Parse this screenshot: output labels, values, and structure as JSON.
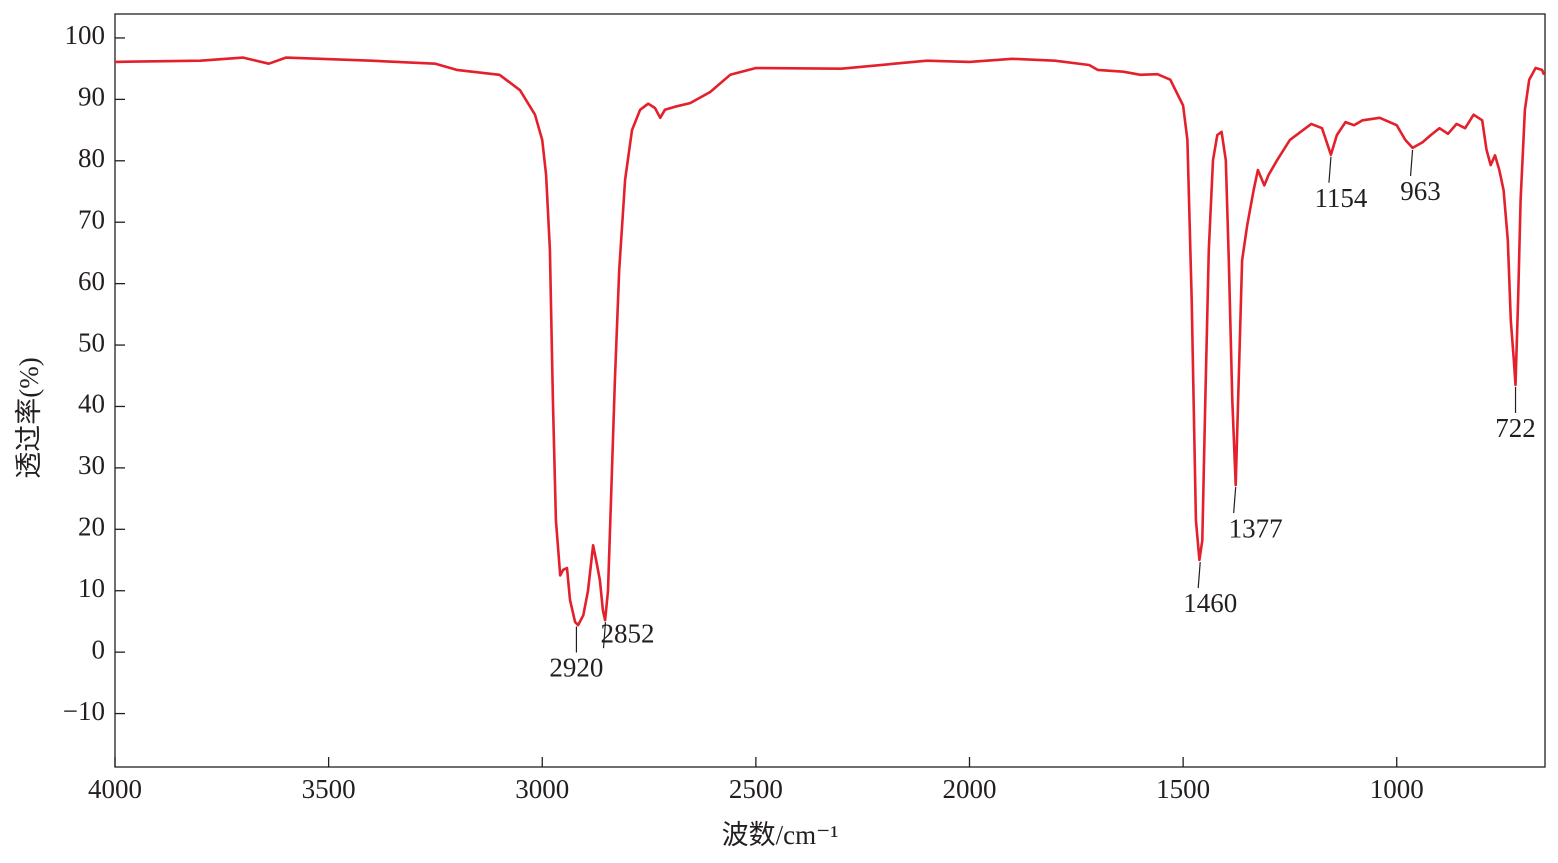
{
  "chart_data": {
    "type": "line",
    "x_label": "波数/cm⁻¹",
    "y_label": "透过率(%)",
    "color": "#e3202b",
    "xlim": [
      4000,
      653
    ],
    "ylim": [
      -18.7,
      103.9
    ],
    "xticks": [
      4000,
      3500,
      3000,
      2500,
      2000,
      1500,
      1000
    ],
    "yticks": [
      {
        "value": -10,
        "label": "−10"
      },
      0,
      10,
      20,
      30,
      40,
      50,
      60,
      70,
      80,
      90,
      100
    ],
    "x": [
      4000,
      3800,
      3700,
      3640,
      3600,
      3400,
      3250,
      3200,
      3100,
      3052,
      3017,
      3000,
      2991,
      2982,
      2975,
      2968,
      2958,
      2951,
      2942,
      2935,
      2923,
      2916,
      2904,
      2893,
      2881,
      2874,
      2865,
      2858,
      2853,
      2846,
      2839,
      2830,
      2820,
      2806,
      2790,
      2771,
      2752,
      2736,
      2724,
      2713,
      2689,
      2654,
      2607,
      2560,
      2500,
      2300,
      2100,
      2000,
      1900,
      1800,
      1720,
      1700,
      1640,
      1600,
      1560,
      1530,
      1500,
      1490,
      1480,
      1470,
      1462,
      1455,
      1448,
      1440,
      1430,
      1420,
      1410,
      1400,
      1393,
      1385,
      1377,
      1370,
      1362,
      1350,
      1335,
      1325,
      1310,
      1300,
      1280,
      1250,
      1200,
      1175,
      1154,
      1140,
      1120,
      1100,
      1080,
      1040,
      1000,
      980,
      963,
      940,
      920,
      900,
      880,
      860,
      840,
      820,
      800,
      790,
      780,
      770,
      760,
      750,
      740,
      733,
      726,
      722,
      716,
      710,
      700,
      690,
      675,
      660,
      655
    ],
    "values": [
      96.1,
      96.3,
      96.8,
      95.8,
      96.8,
      96.3,
      95.8,
      94.8,
      94,
      91.5,
      87.5,
      83.4,
      77.7,
      65.5,
      41,
      21.5,
      12.5,
      13.4,
      13.7,
      8.5,
      4.9,
      4.4,
      6,
      10,
      17.4,
      15,
      11.7,
      6.8,
      5.2,
      10,
      24.8,
      44.3,
      62.2,
      76.9,
      85,
      88.3,
      89.3,
      88.6,
      87,
      88.3,
      88.8,
      89.4,
      91.2,
      94,
      95.1,
      95,
      96.3,
      96.1,
      96.6,
      96.3,
      95.6,
      94.8,
      94.5,
      94,
      94.1,
      93.2,
      89,
      83.4,
      57.3,
      21.5,
      15,
      18.2,
      41,
      65.5,
      80.1,
      84.2,
      84.7,
      80.1,
      63.8,
      41,
      27.2,
      44.3,
      63.8,
      69.5,
      75.2,
      78.5,
      76,
      77.7,
      80.1,
      83.4,
      86,
      85.3,
      81,
      84.2,
      86.3,
      85.8,
      86.6,
      87,
      85.8,
      83.4,
      82.1,
      83,
      84.2,
      85.3,
      84.4,
      86,
      85.3,
      87.5,
      86.6,
      81.8,
      79.3,
      80.9,
      78.5,
      75.2,
      67.1,
      54,
      47.6,
      43.5,
      57.3,
      73.6,
      88.3,
      93.2,
      95.1,
      94.8,
      94
    ],
    "annotations": [
      {
        "x": 2920,
        "y": 4.5
      },
      {
        "x": 2852,
        "y": 5.2
      },
      {
        "x": 1460,
        "y": 15
      },
      {
        "x": 1377,
        "y": 27.2
      },
      {
        "x": 1154,
        "y": 81
      },
      {
        "x": 963,
        "y": 82.1
      },
      {
        "x": 722,
        "y": 43.5
      }
    ]
  }
}
